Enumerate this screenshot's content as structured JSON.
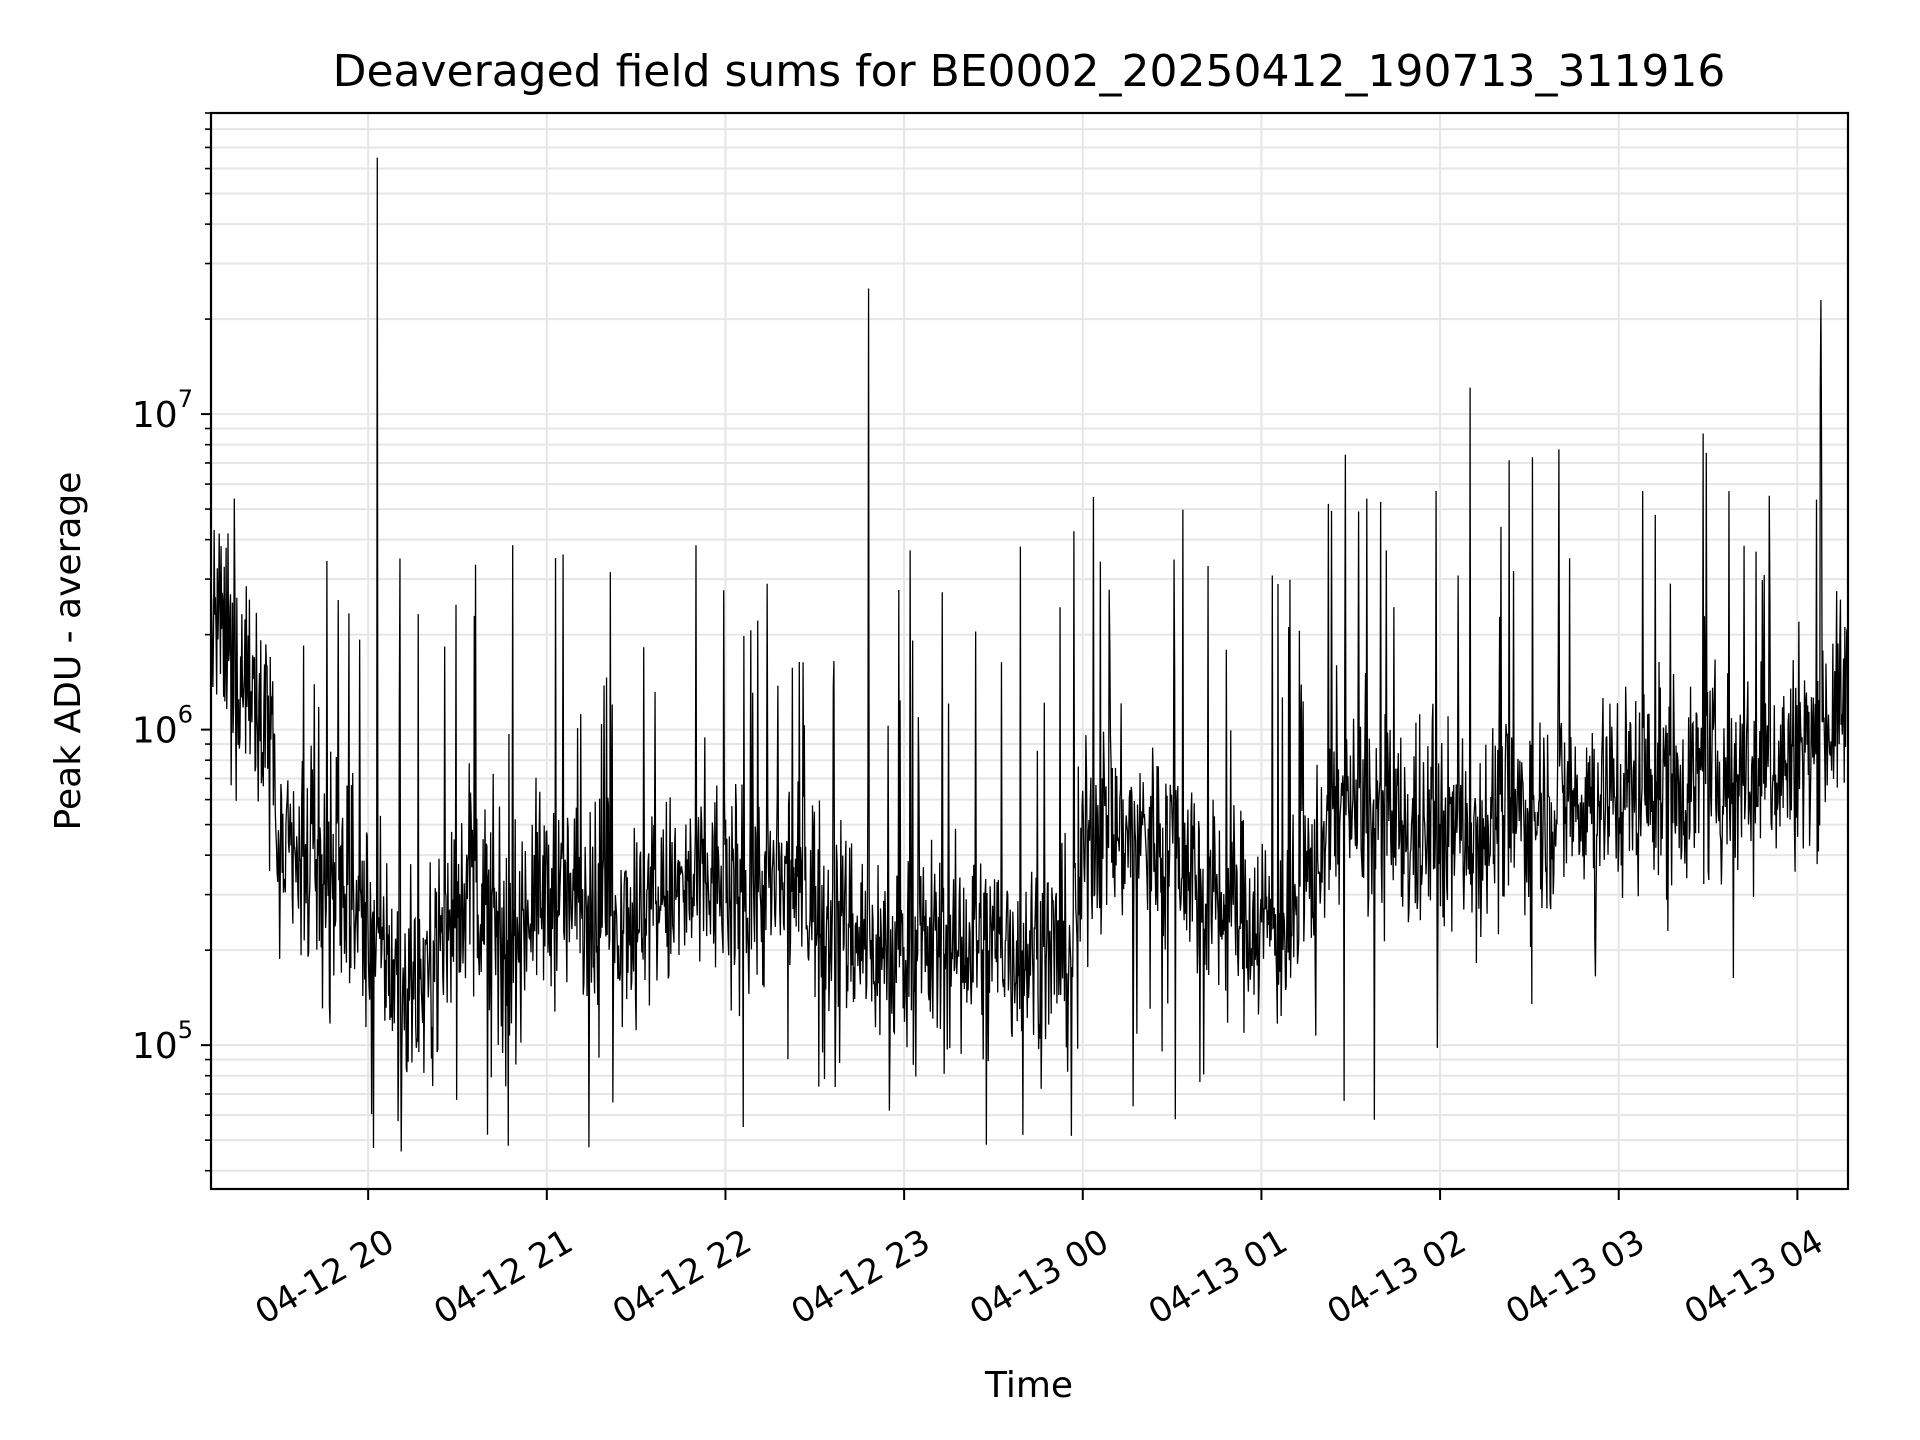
{
  "chart_data": {
    "type": "line",
    "title": "Deaveraged field sums for BE0002_20250412_190713_311916",
    "xlabel": "Time",
    "ylabel": "Peak ADU - average",
    "yscale": "log",
    "ylim": [
      35000,
      90000000
    ],
    "xlim": [
      "2025-04-12 19:07:13",
      "2025-04-13 04:17:00"
    ],
    "grid": true,
    "line_color": "#000000",
    "grid_color": "#e6e6e6",
    "x_ticks": [
      {
        "value": "2025-04-12 20:00",
        "label": "04-12 20"
      },
      {
        "value": "2025-04-12 21:00",
        "label": "04-12 21"
      },
      {
        "value": "2025-04-12 22:00",
        "label": "04-12 22"
      },
      {
        "value": "2025-04-12 23:00",
        "label": "04-12 23"
      },
      {
        "value": "2025-04-13 00:00",
        "label": "04-13 00"
      },
      {
        "value": "2025-04-13 01:00",
        "label": "04-13 01"
      },
      {
        "value": "2025-04-13 02:00",
        "label": "04-13 02"
      },
      {
        "value": "2025-04-13 03:00",
        "label": "04-13 03"
      },
      {
        "value": "2025-04-13 04:00",
        "label": "04-13 04"
      }
    ],
    "y_ticks": [
      {
        "value": 100000,
        "base": "10",
        "exp": "5"
      },
      {
        "value": 1000000,
        "base": "10",
        "exp": "6"
      },
      {
        "value": 10000000,
        "base": "10",
        "exp": "7"
      }
    ],
    "series": [
      {
        "baseline": [
          {
            "t": "2025-04-12 19:07",
            "v": 2200000
          },
          {
            "t": "2025-04-12 19:20",
            "v": 1500000
          },
          {
            "t": "2025-04-12 19:27",
            "v": 1200000
          },
          {
            "t": "2025-04-12 19:30",
            "v": 380000
          },
          {
            "t": "2025-04-12 19:50",
            "v": 320000
          },
          {
            "t": "2025-04-12 20:05",
            "v": 200000
          },
          {
            "t": "2025-04-12 20:15",
            "v": 140000
          },
          {
            "t": "2025-04-12 20:25",
            "v": 220000
          },
          {
            "t": "2025-04-12 20:35",
            "v": 380000
          },
          {
            "t": "2025-04-12 20:45",
            "v": 180000
          },
          {
            "t": "2025-04-12 20:55",
            "v": 300000
          },
          {
            "t": "2025-04-12 21:30",
            "v": 270000
          },
          {
            "t": "2025-04-12 22:00",
            "v": 330000
          },
          {
            "t": "2025-04-12 22:30",
            "v": 300000
          },
          {
            "t": "2025-04-12 22:50",
            "v": 200000
          },
          {
            "t": "2025-04-12 23:30",
            "v": 210000
          },
          {
            "t": "2025-04-12 23:55",
            "v": 190000
          },
          {
            "t": "2025-04-13 00:02",
            "v": 500000
          },
          {
            "t": "2025-04-13 00:30",
            "v": 450000
          },
          {
            "t": "2025-04-13 00:45",
            "v": 280000
          },
          {
            "t": "2025-04-13 01:10",
            "v": 230000
          },
          {
            "t": "2025-04-13 01:25",
            "v": 600000
          },
          {
            "t": "2025-04-13 01:50",
            "v": 450000
          },
          {
            "t": "2025-04-13 02:30",
            "v": 550000
          },
          {
            "t": "2025-04-13 03:00",
            "v": 650000
          },
          {
            "t": "2025-04-13 03:30",
            "v": 700000
          },
          {
            "t": "2025-04-13 04:00",
            "v": 800000
          },
          {
            "t": "2025-04-13 04:17",
            "v": 1300000
          }
        ],
        "spikes": [
          {
            "t": "2025-04-12 19:15",
            "v": 5400000
          },
          {
            "t": "2025-04-12 20:03",
            "v": 65000000
          },
          {
            "t": "2025-04-12 21:03",
            "v": 3500000
          },
          {
            "t": "2025-04-12 22:14",
            "v": 2900000
          },
          {
            "t": "2025-04-12 22:48",
            "v": 25000000
          },
          {
            "t": "2025-04-12 23:02",
            "v": 3700000
          },
          {
            "t": "2025-04-12 23:39",
            "v": 3800000
          },
          {
            "t": "2025-04-13 00:42",
            "v": 3300000
          },
          {
            "t": "2025-04-13 01:42",
            "v": 3700000
          },
          {
            "t": "2025-04-13 02:31",
            "v": 7300000
          },
          {
            "t": "2025-04-13 03:37",
            "v": 5700000
          },
          {
            "t": "2025-04-13 04:08",
            "v": 23000000
          }
        ],
        "dips": [
          {
            "t": "2025-04-12 20:11",
            "v": 46000
          },
          {
            "t": "2025-04-12 20:40",
            "v": 52000
          },
          {
            "t": "2025-04-12 20:47",
            "v": 48000
          },
          {
            "t": "2025-04-12 22:06",
            "v": 55000
          },
          {
            "t": "2025-04-12 22:55",
            "v": 62000
          },
          {
            "t": "2025-04-13 00:17",
            "v": 64000
          },
          {
            "t": "2025-04-13 01:38",
            "v": 58000
          }
        ]
      }
    ]
  }
}
